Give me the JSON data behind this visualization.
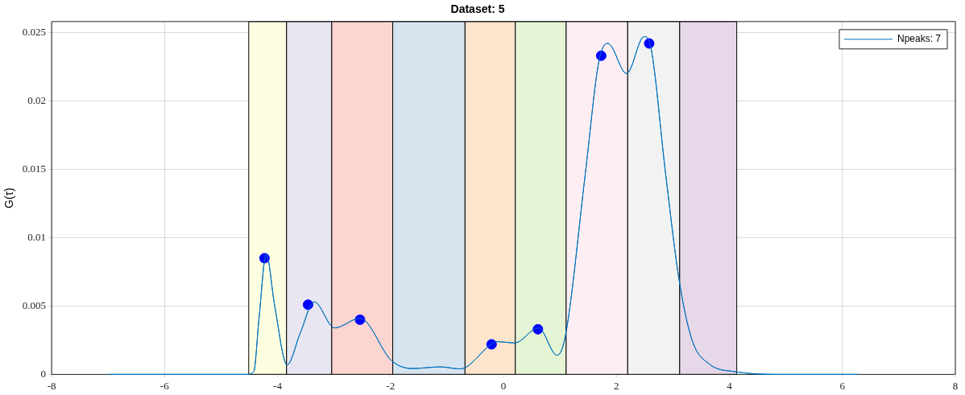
{
  "chart_data": {
    "type": "line",
    "title": "Dataset: 5",
    "ylabel": "G(τ)",
    "xlim": [
      -8,
      8
    ],
    "xticks": [
      -8,
      -6,
      -4,
      -2,
      0,
      2,
      4,
      6,
      8
    ],
    "ylim": [
      0,
      0.0258
    ],
    "yticks": [
      0,
      0.005,
      0.01,
      0.015,
      0.02,
      0.025
    ],
    "grid": true,
    "legend": "top right",
    "line_style": "solid",
    "series": [
      {
        "name": "Npeaks: 7",
        "color": "#0072bd",
        "marker": "none",
        "x": [
          -7,
          -5,
          -4.55,
          -4.42,
          -4.33,
          -4.2,
          -4.05,
          -3.83,
          -3.6,
          -3.35,
          -2.99,
          -2.54,
          -1.98,
          -1.62,
          -1.11,
          -0.77,
          -0.2,
          -0.11,
          0.2,
          0.62,
          0.95,
          1.1,
          1.45,
          1.69,
          1.85,
          2.18,
          2.49,
          2.61,
          2.87,
          3.11,
          3.34,
          3.63,
          4.1,
          5,
          6.3
        ],
        "values": [
          0,
          0,
          0,
          0.0002,
          0.004,
          0.0088,
          0.005,
          0.0007,
          0.003,
          0.0053,
          0.0034,
          0.0041,
          0.001,
          0.00043,
          0.00055,
          0.0004,
          0.00225,
          0.0024,
          0.0023,
          0.0034,
          0.0014,
          0.0029,
          0.0147,
          0.0229,
          0.0242,
          0.022,
          0.0247,
          0.0239,
          0.0147,
          0.0069,
          0.0025,
          0.0008,
          0.0002,
          0,
          0
        ]
      },
      {
        "type": "scatter",
        "color": "#0000ff",
        "marker": "circle",
        "x": [
          -4.23,
          -3.46,
          -2.54,
          -0.21,
          0.61,
          1.73,
          2.58
        ],
        "values": [
          0.0085,
          0.0051,
          0.004,
          0.0022,
          0.0033,
          0.0233,
          0.0242
        ]
      }
    ],
    "bands": [
      {
        "axis": "x",
        "from": -4.51,
        "to": -3.84,
        "color": "#fdfde0"
      },
      {
        "axis": "x",
        "from": -3.84,
        "to": -3.04,
        "color": "#e8e6f0"
      },
      {
        "axis": "x",
        "from": -3.04,
        "to": -1.96,
        "color": "#fdd5d0"
      },
      {
        "axis": "x",
        "from": -1.96,
        "to": -0.68,
        "color": "#d6e4f0"
      },
      {
        "axis": "x",
        "from": -0.68,
        "to": 0.21,
        "color": "#fde4cc"
      },
      {
        "axis": "x",
        "from": 0.21,
        "to": 1.11,
        "color": "#e5f4d4"
      },
      {
        "axis": "x",
        "from": 1.11,
        "to": 2.2,
        "color": "#fdeef4"
      },
      {
        "axis": "x",
        "from": 2.2,
        "to": 3.12,
        "color": "#f2f2f2"
      },
      {
        "axis": "x",
        "from": 3.12,
        "to": 4.13,
        "color": "#e6d8e8"
      }
    ]
  }
}
